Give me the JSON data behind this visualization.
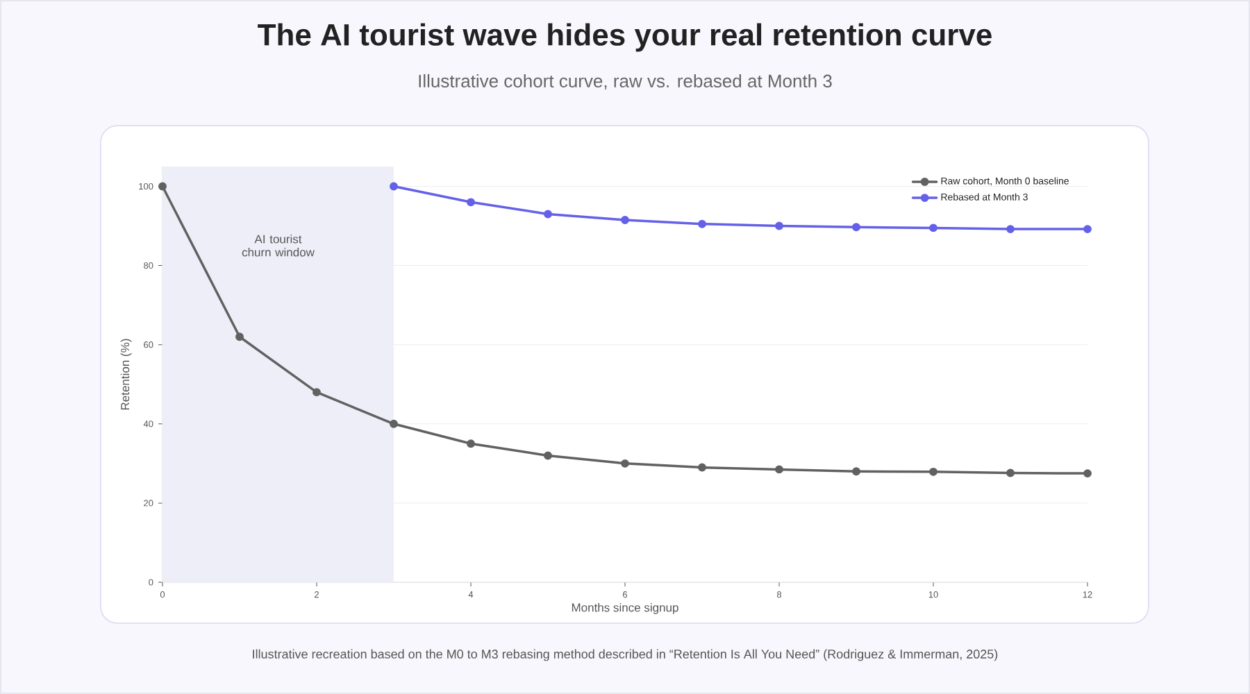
{
  "chart_data": {
    "type": "line",
    "title": "The AI tourist wave hides your real retention curve",
    "subtitle": "Illustrative cohort curve, raw vs. rebased at Month 3",
    "xlabel": "Months since signup",
    "ylabel": "Retention (%)",
    "annotations": [
      "Illustrative recreation based on the M0 to M3 rebasing method described in “Retention Is All You Need” (Rodriguez & Immerman, 2025)"
    ],
    "x": [
      0,
      1,
      2,
      3,
      4,
      5,
      6,
      7,
      8,
      9,
      10,
      11,
      12
    ],
    "series": [
      {
        "name": "Raw cohort, Month 0 baseline",
        "color": "#616161",
        "values": [
          100,
          62,
          48,
          40,
          35,
          32,
          30,
          29,
          28.5,
          28,
          27.9,
          27.6,
          27.5
        ]
      },
      {
        "name": "Rebased at Month 3",
        "color": "#6461e8",
        "x": [
          3,
          4,
          5,
          6,
          7,
          8,
          9,
          10,
          11,
          12
        ],
        "values": [
          100,
          96,
          93,
          91.5,
          90.5,
          90,
          89.7,
          89.5,
          89.2,
          89.2
        ]
      }
    ],
    "xlim": [
      0,
      12
    ],
    "ylim": [
      0,
      105
    ],
    "xticks": [
      0,
      2,
      4,
      6,
      8,
      10,
      12
    ],
    "yticks": [
      0,
      20,
      40,
      60,
      80,
      100
    ],
    "grid": "y",
    "legend": "top right",
    "marker": "circle",
    "line_style": "solid",
    "bands": [
      {
        "axis": "x",
        "from": 0,
        "to": 3,
        "label": "AI tourist churn window",
        "color": "#eeeef9"
      }
    ]
  }
}
